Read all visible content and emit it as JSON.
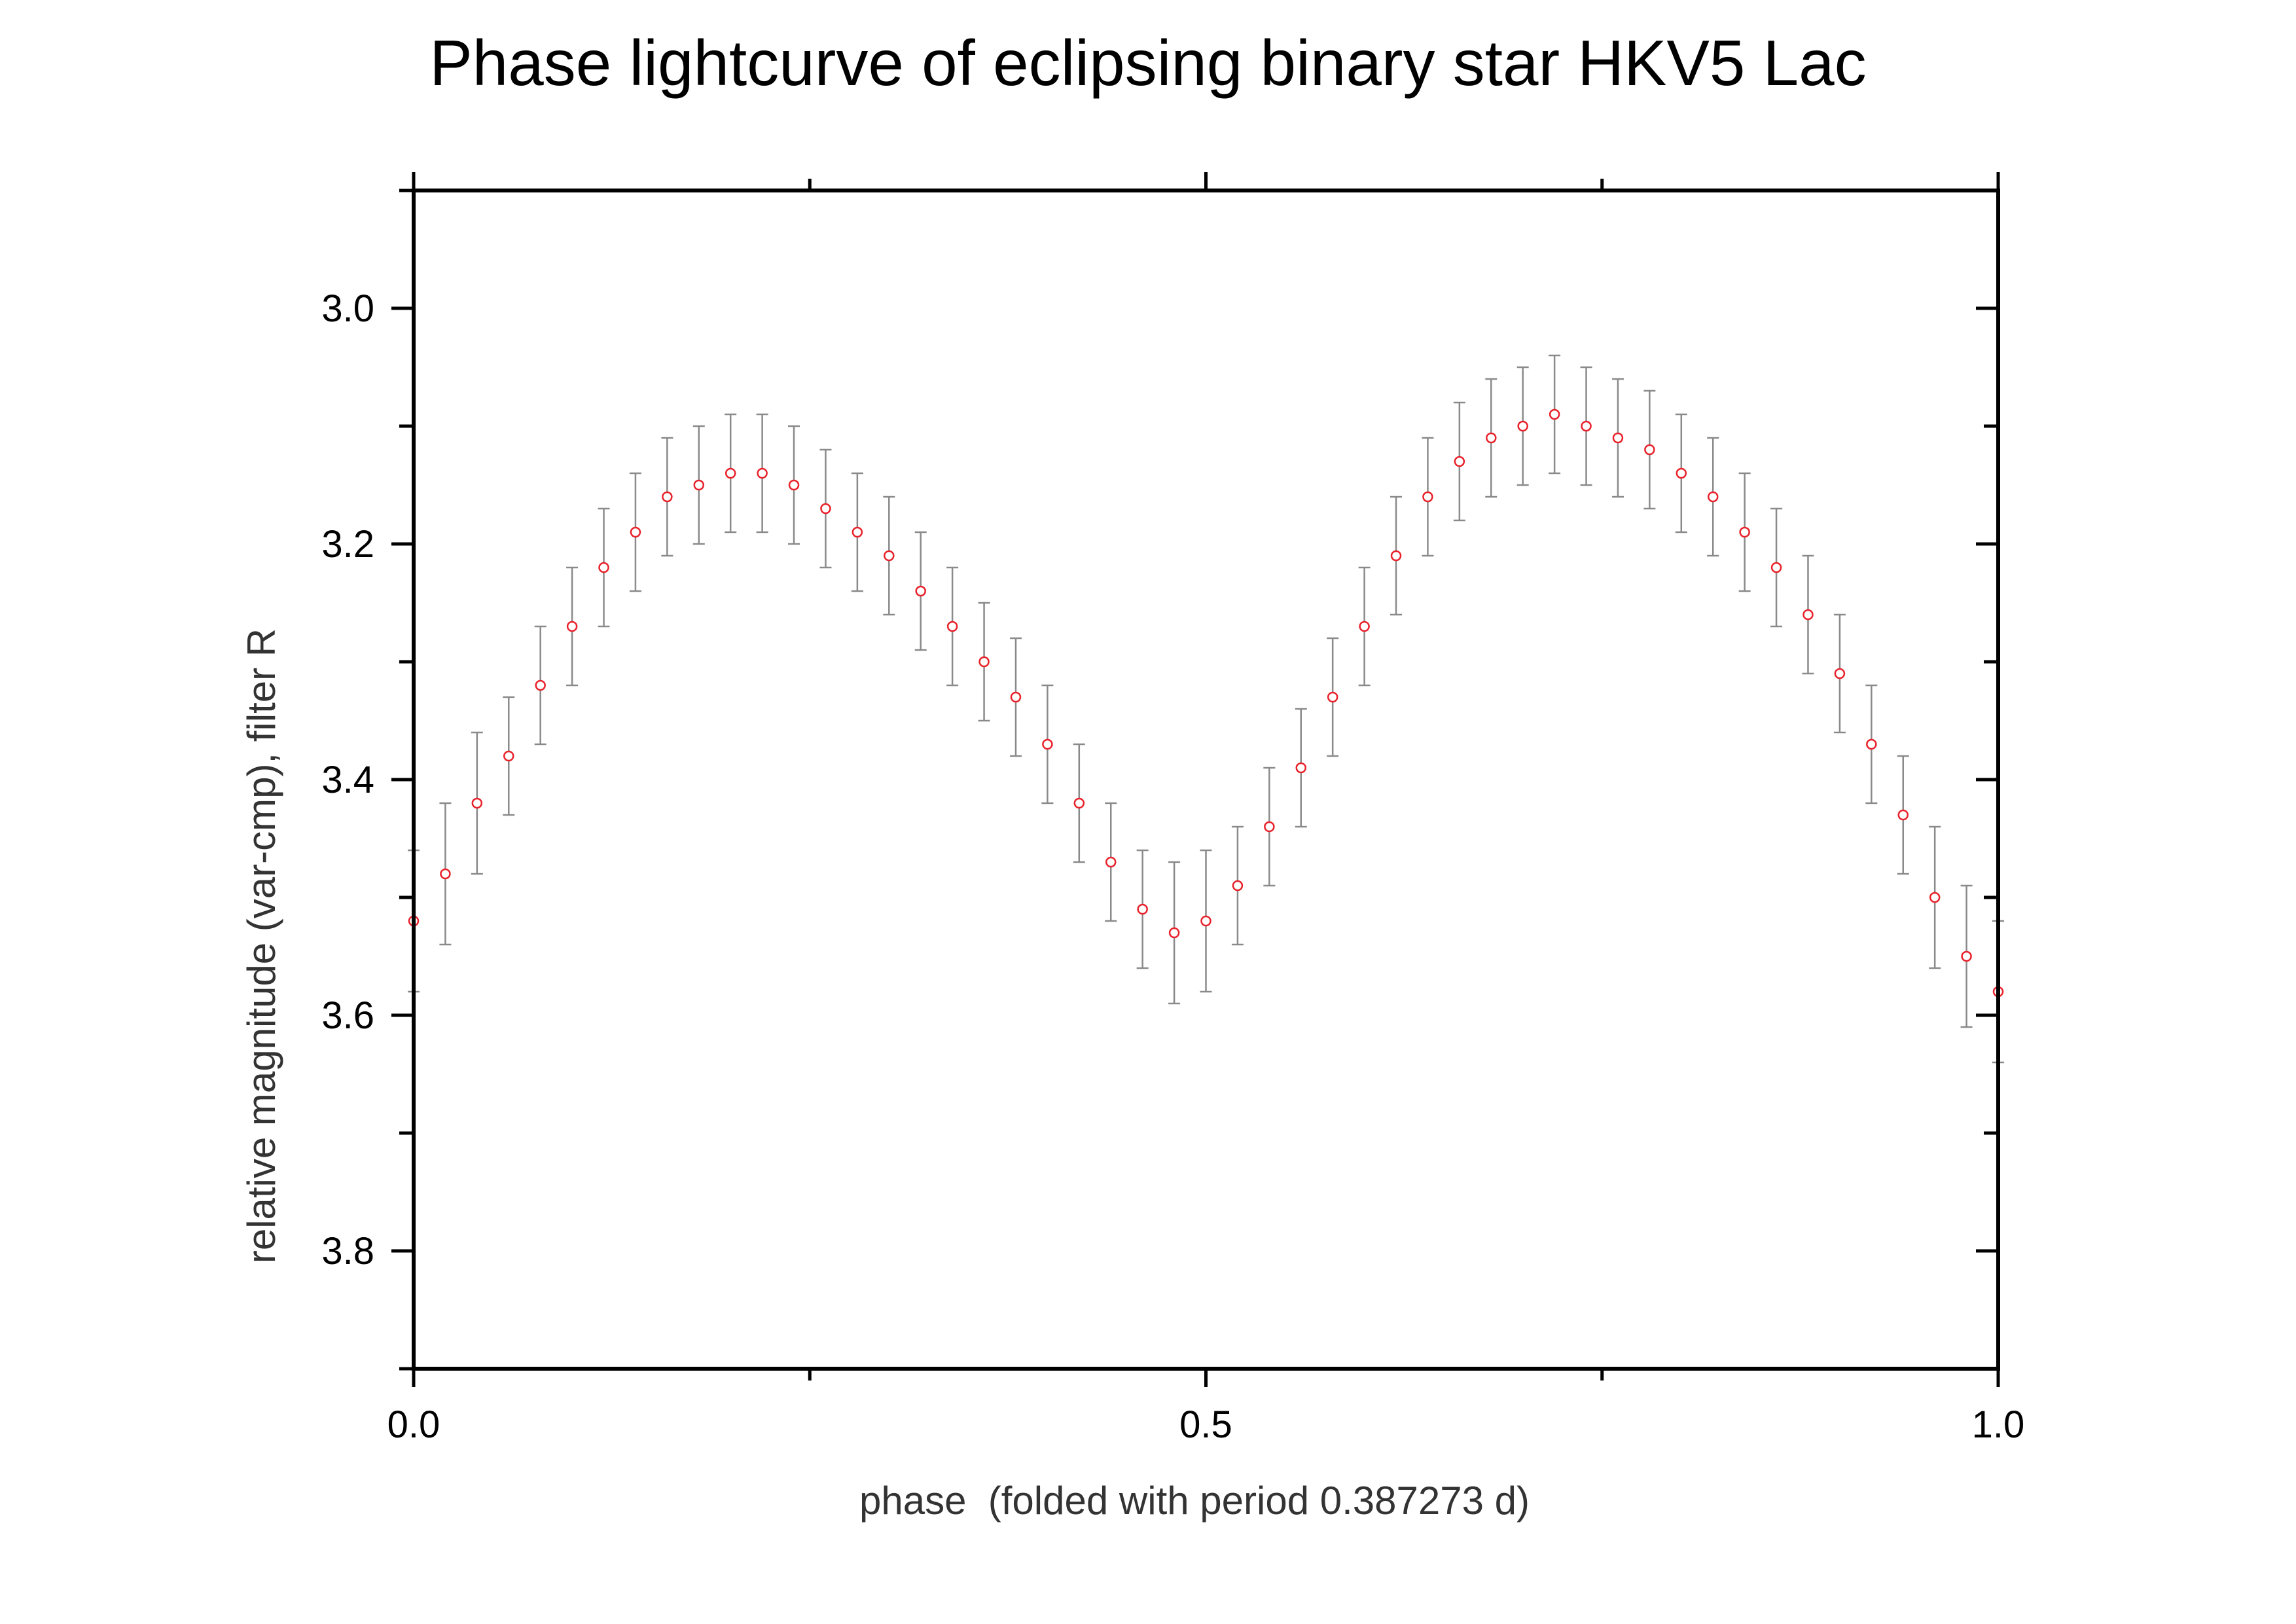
{
  "chart_data": {
    "type": "scatter",
    "title": "Phase lightcurve of eclipsing binary star HKV5 Lac",
    "xlabel": "phase  (folded with period 0.387273 d)",
    "ylabel": "relative magnitude (var-cmp), filter R",
    "xlim": [
      0.0,
      1.0
    ],
    "ylim": [
      3.9,
      2.9
    ],
    "y_inverted": true,
    "x_ticks": [
      "0.0",
      "0.5",
      "1.0"
    ],
    "y_ticks": [
      "3.0",
      "3.2",
      "3.4",
      "3.6",
      "3.8"
    ],
    "grid": false,
    "error_bars": true,
    "marker_color": "#e8212a",
    "errorbar_color": "#8a8a8a",
    "series": [
      {
        "x": [
          0.0,
          0.02,
          0.04,
          0.06,
          0.08,
          0.1,
          0.12,
          0.14,
          0.16,
          0.18,
          0.2,
          0.22,
          0.24,
          0.26,
          0.28,
          0.3,
          0.32,
          0.34,
          0.36,
          0.38,
          0.4,
          0.42,
          0.44,
          0.46,
          0.48,
          0.5,
          0.52,
          0.54,
          0.56,
          0.58,
          0.6,
          0.62,
          0.64,
          0.66,
          0.68,
          0.7,
          0.72,
          0.74,
          0.76,
          0.78,
          0.8,
          0.82,
          0.84,
          0.86,
          0.88,
          0.9,
          0.92,
          0.94,
          0.96,
          0.98,
          1.0
        ],
        "y": [
          3.52,
          3.48,
          3.42,
          3.38,
          3.32,
          3.27,
          3.22,
          3.19,
          3.16,
          3.15,
          3.14,
          3.14,
          3.15,
          3.17,
          3.19,
          3.21,
          3.24,
          3.27,
          3.3,
          3.33,
          3.37,
          3.42,
          3.47,
          3.51,
          3.53,
          3.52,
          3.49,
          3.44,
          3.39,
          3.33,
          3.27,
          3.21,
          3.16,
          3.13,
          3.11,
          3.1,
          3.09,
          3.1,
          3.11,
          3.12,
          3.14,
          3.16,
          3.19,
          3.22,
          3.26,
          3.31,
          3.37,
          3.43,
          3.5,
          3.55,
          3.58
        ],
        "err": [
          0.06,
          0.06,
          0.06,
          0.05,
          0.05,
          0.05,
          0.05,
          0.05,
          0.05,
          0.05,
          0.05,
          0.05,
          0.05,
          0.05,
          0.05,
          0.05,
          0.05,
          0.05,
          0.05,
          0.05,
          0.05,
          0.05,
          0.05,
          0.05,
          0.06,
          0.06,
          0.05,
          0.05,
          0.05,
          0.05,
          0.05,
          0.05,
          0.05,
          0.05,
          0.05,
          0.05,
          0.05,
          0.05,
          0.05,
          0.05,
          0.05,
          0.05,
          0.05,
          0.05,
          0.05,
          0.05,
          0.05,
          0.05,
          0.06,
          0.06,
          0.06
        ]
      }
    ]
  }
}
